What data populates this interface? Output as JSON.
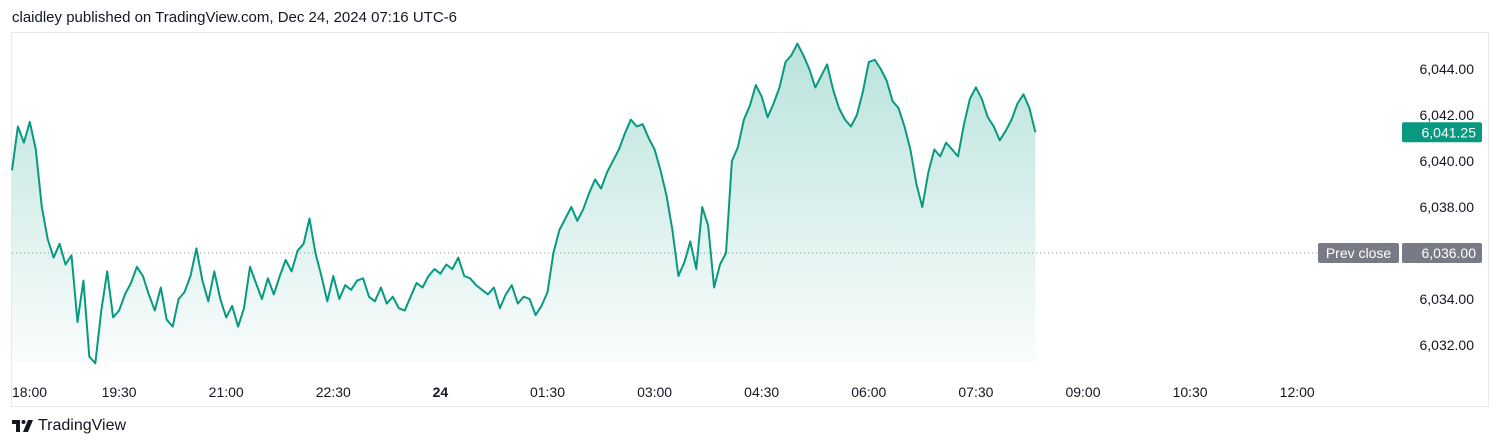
{
  "header": {
    "text": "claidley published on TradingView.com, Dec 24, 2024 07:16 UTC-6"
  },
  "footer": {
    "brand": "TradingView"
  },
  "colors": {
    "line": "#089981",
    "fill_top": "#089981",
    "prev_close_badge": "#787b86",
    "price_badge": "#089981"
  },
  "chart_data": {
    "type": "area",
    "y_range": [
      6031.0,
      6045.5
    ],
    "y_ticks": [
      {
        "value": 6032,
        "label": "6,032.00"
      },
      {
        "value": 6034,
        "label": "6,034.00"
      },
      {
        "value": 6038,
        "label": "6,038.00"
      },
      {
        "value": 6040,
        "label": "6,040.00"
      },
      {
        "value": 6042,
        "label": "6,042.00"
      },
      {
        "value": 6044,
        "label": "6,044.00"
      }
    ],
    "x_ticks": [
      {
        "t": 0,
        "label": "18:00",
        "bold": false
      },
      {
        "t": 90,
        "label": "19:30",
        "bold": false
      },
      {
        "t": 180,
        "label": "21:00",
        "bold": false
      },
      {
        "t": 270,
        "label": "22:30",
        "bold": false
      },
      {
        "t": 360,
        "label": "24",
        "bold": true
      },
      {
        "t": 450,
        "label": "01:30",
        "bold": false
      },
      {
        "t": 540,
        "label": "03:00",
        "bold": false
      },
      {
        "t": 630,
        "label": "04:30",
        "bold": false
      },
      {
        "t": 720,
        "label": "06:00",
        "bold": false
      },
      {
        "t": 810,
        "label": "07:30",
        "bold": false
      },
      {
        "t": 900,
        "label": "09:00",
        "bold": false
      },
      {
        "t": 990,
        "label": "10:30",
        "bold": false
      },
      {
        "t": 1080,
        "label": "12:00",
        "bold": false
      }
    ],
    "prev_close": {
      "value": 6036.0,
      "label": "Prev close",
      "value_label": "6,036.00"
    },
    "last_price": {
      "value": 6041.25,
      "label": "6,041.25"
    },
    "series": [
      {
        "points": [
          [
            0,
            6039.6
          ],
          [
            5,
            6041.5
          ],
          [
            10,
            6040.8
          ],
          [
            15,
            6041.7
          ],
          [
            20,
            6040.5
          ],
          [
            25,
            6038.0
          ],
          [
            30,
            6036.6
          ],
          [
            35,
            6035.8
          ],
          [
            40,
            6036.4
          ],
          [
            45,
            6035.5
          ],
          [
            50,
            6035.9
          ],
          [
            55,
            6033.0
          ],
          [
            60,
            6034.8
          ],
          [
            65,
            6031.5
          ],
          [
            70,
            6031.2
          ],
          [
            75,
            6033.5
          ],
          [
            80,
            6035.2
          ],
          [
            85,
            6033.2
          ],
          [
            90,
            6033.5
          ],
          [
            95,
            6034.2
          ],
          [
            100,
            6034.7
          ],
          [
            105,
            6035.4
          ],
          [
            110,
            6035.0
          ],
          [
            115,
            6034.2
          ],
          [
            120,
            6033.5
          ],
          [
            125,
            6034.5
          ],
          [
            130,
            6033.1
          ],
          [
            135,
            6032.8
          ],
          [
            140,
            6034.0
          ],
          [
            145,
            6034.3
          ],
          [
            150,
            6035.0
          ],
          [
            155,
            6036.2
          ],
          [
            160,
            6034.8
          ],
          [
            165,
            6033.9
          ],
          [
            170,
            6035.2
          ],
          [
            175,
            6034.0
          ],
          [
            180,
            6033.2
          ],
          [
            185,
            6033.7
          ],
          [
            190,
            6032.8
          ],
          [
            195,
            6033.6
          ],
          [
            200,
            6035.4
          ],
          [
            205,
            6034.7
          ],
          [
            210,
            6034.0
          ],
          [
            215,
            6034.9
          ],
          [
            220,
            6034.2
          ],
          [
            225,
            6035.0
          ],
          [
            230,
            6035.7
          ],
          [
            235,
            6035.2
          ],
          [
            240,
            6036.1
          ],
          [
            245,
            6036.4
          ],
          [
            250,
            6037.5
          ],
          [
            255,
            6036.0
          ],
          [
            260,
            6035.0
          ],
          [
            265,
            6033.9
          ],
          [
            270,
            6035.0
          ],
          [
            275,
            6034.0
          ],
          [
            280,
            6034.6
          ],
          [
            285,
            6034.4
          ],
          [
            290,
            6034.8
          ],
          [
            295,
            6034.9
          ],
          [
            300,
            6034.1
          ],
          [
            305,
            6033.9
          ],
          [
            310,
            6034.5
          ],
          [
            315,
            6033.8
          ],
          [
            320,
            6034.1
          ],
          [
            325,
            6033.6
          ],
          [
            330,
            6033.5
          ],
          [
            335,
            6034.1
          ],
          [
            340,
            6034.7
          ],
          [
            345,
            6034.5
          ],
          [
            350,
            6035.0
          ],
          [
            355,
            6035.3
          ],
          [
            360,
            6035.1
          ],
          [
            365,
            6035.5
          ],
          [
            370,
            6035.3
          ],
          [
            375,
            6035.8
          ],
          [
            380,
            6035.0
          ],
          [
            385,
            6034.9
          ],
          [
            390,
            6034.6
          ],
          [
            395,
            6034.4
          ],
          [
            400,
            6034.2
          ],
          [
            405,
            6034.5
          ],
          [
            410,
            6033.6
          ],
          [
            415,
            6034.2
          ],
          [
            420,
            6034.6
          ],
          [
            425,
            6033.8
          ],
          [
            430,
            6034.1
          ],
          [
            435,
            6034.0
          ],
          [
            440,
            6033.3
          ],
          [
            445,
            6033.7
          ],
          [
            450,
            6034.3
          ],
          [
            455,
            6036.0
          ],
          [
            460,
            6037.0
          ],
          [
            465,
            6037.5
          ],
          [
            470,
            6038.0
          ],
          [
            475,
            6037.4
          ],
          [
            480,
            6037.9
          ],
          [
            485,
            6038.6
          ],
          [
            490,
            6039.2
          ],
          [
            495,
            6038.8
          ],
          [
            500,
            6039.5
          ],
          [
            505,
            6040.0
          ],
          [
            510,
            6040.5
          ],
          [
            515,
            6041.2
          ],
          [
            520,
            6041.8
          ],
          [
            525,
            6041.5
          ],
          [
            530,
            6041.6
          ],
          [
            535,
            6041.0
          ],
          [
            540,
            6040.5
          ],
          [
            545,
            6039.6
          ],
          [
            550,
            6038.5
          ],
          [
            555,
            6037.0
          ],
          [
            560,
            6035.0
          ],
          [
            565,
            6035.6
          ],
          [
            570,
            6036.5
          ],
          [
            575,
            6035.3
          ],
          [
            580,
            6038.0
          ],
          [
            585,
            6037.2
          ],
          [
            590,
            6034.5
          ],
          [
            595,
            6035.5
          ],
          [
            600,
            6036.0
          ],
          [
            605,
            6040.0
          ],
          [
            610,
            6040.6
          ],
          [
            615,
            6041.8
          ],
          [
            620,
            6042.4
          ],
          [
            625,
            6043.3
          ],
          [
            630,
            6042.8
          ],
          [
            635,
            6041.9
          ],
          [
            640,
            6042.5
          ],
          [
            645,
            6043.2
          ],
          [
            650,
            6044.3
          ],
          [
            655,
            6044.6
          ],
          [
            660,
            6045.1
          ],
          [
            665,
            6044.6
          ],
          [
            670,
            6044.0
          ],
          [
            675,
            6043.2
          ],
          [
            680,
            6043.7
          ],
          [
            685,
            6044.2
          ],
          [
            690,
            6043.1
          ],
          [
            695,
            6042.3
          ],
          [
            700,
            6041.8
          ],
          [
            705,
            6041.5
          ],
          [
            710,
            6042.0
          ],
          [
            715,
            6043.0
          ],
          [
            720,
            6044.3
          ],
          [
            725,
            6044.4
          ],
          [
            730,
            6044.0
          ],
          [
            735,
            6043.5
          ],
          [
            740,
            6042.6
          ],
          [
            745,
            6042.3
          ],
          [
            750,
            6041.5
          ],
          [
            755,
            6040.5
          ],
          [
            760,
            6039.0
          ],
          [
            765,
            6038.0
          ],
          [
            770,
            6039.5
          ],
          [
            775,
            6040.5
          ],
          [
            780,
            6040.2
          ],
          [
            785,
            6040.8
          ],
          [
            790,
            6040.5
          ],
          [
            795,
            6040.2
          ],
          [
            800,
            6041.6
          ],
          [
            805,
            6042.7
          ],
          [
            810,
            6043.2
          ],
          [
            815,
            6042.7
          ],
          [
            820,
            6041.9
          ],
          [
            825,
            6041.5
          ],
          [
            830,
            6040.9
          ],
          [
            835,
            6041.3
          ],
          [
            840,
            6041.8
          ],
          [
            845,
            6042.5
          ],
          [
            850,
            6042.9
          ],
          [
            855,
            6042.3
          ],
          [
            860,
            6041.25
          ]
        ]
      }
    ]
  }
}
